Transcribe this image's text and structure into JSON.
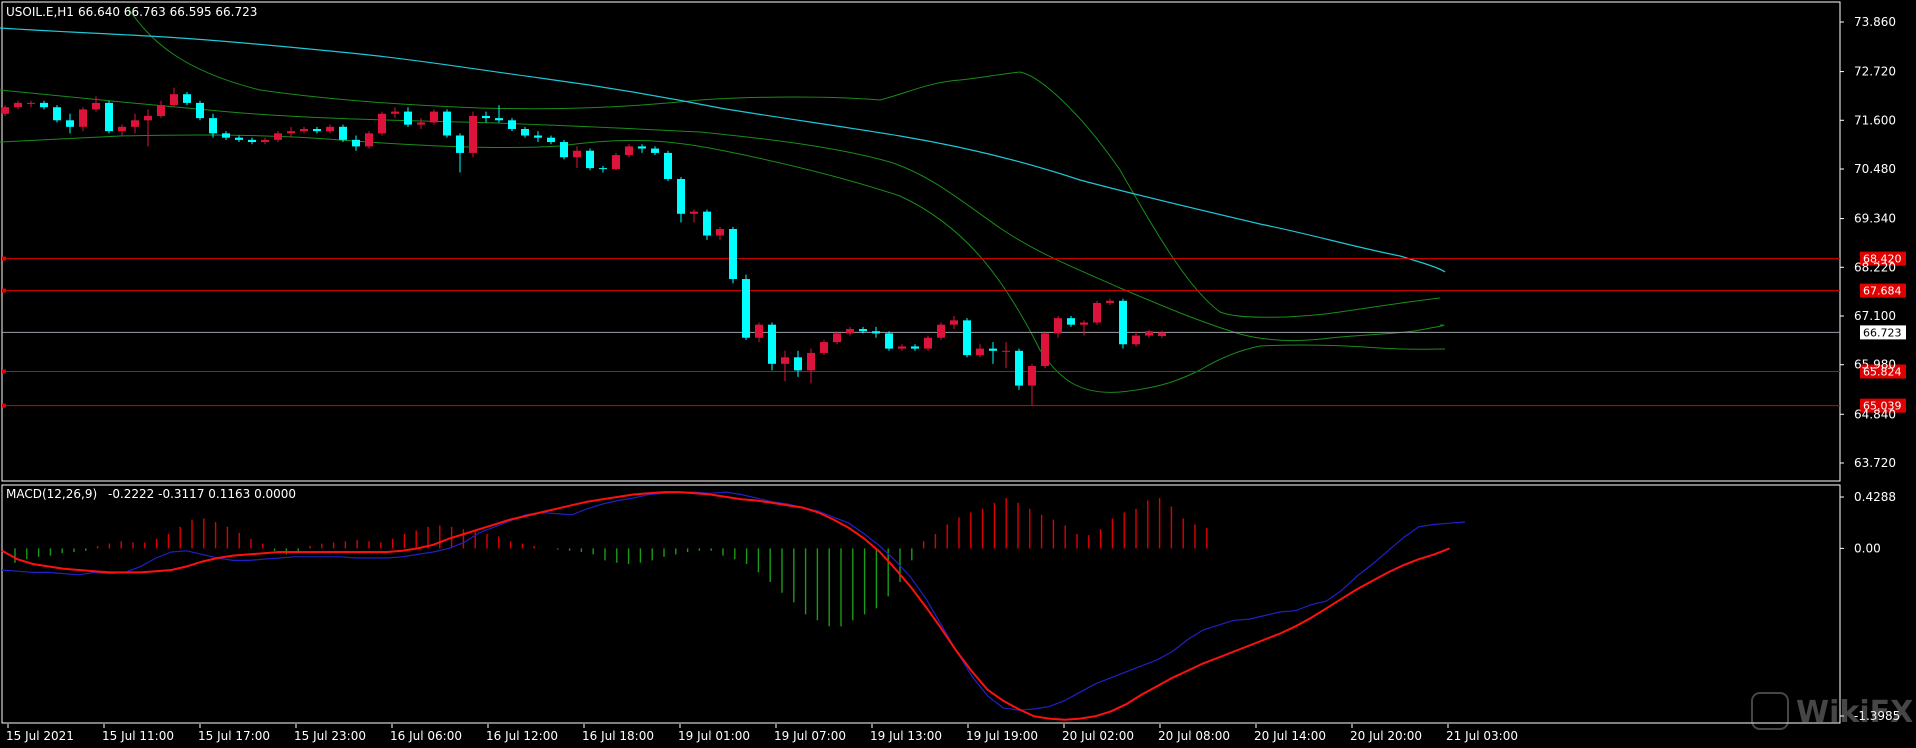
{
  "header": {
    "symbol": "USOIL.E,H1",
    "ohlc": "66.640 66.763 66.595 66.723"
  },
  "macd_header": {
    "label": "MACD(12,26,9)",
    "values": "-0.2222 -0.3117 0.1163 0.0000"
  },
  "watermark": "WikiFX",
  "colors": {
    "background": "#000000",
    "bull_candle": "#dc143c",
    "bear_candle": "#00ffff",
    "ma_line": "#1ec8d8",
    "bollinger": "#1a8c1a",
    "level_line": "#e00000",
    "macd_hist_pos": "#e00000",
    "macd_hist_neg": "#1a9c1a",
    "macd_line": "#2020c8",
    "signal_line": "#ff1010",
    "axis_text": "#ffffff"
  },
  "chart_data": [
    {
      "type": "candlestick",
      "title": "USOIL.E,H1",
      "ylim": [
        63.3,
        74.0
      ],
      "price_ticks": [
        "73.860",
        "72.720",
        "71.600",
        "70.480",
        "69.340",
        "68.220",
        "67.100",
        "65.980",
        "64.840",
        "63.720"
      ],
      "time_labels": [
        "15 Jul 2021",
        "15 Jul 11:00",
        "15 Jul 17:00",
        "15 Jul 23:00",
        "16 Jul 06:00",
        "16 Jul 12:00",
        "16 Jul 18:00",
        "19 Jul 01:00",
        "19 Jul 07:00",
        "19 Jul 13:00",
        "19 Jul 19:00",
        "20 Jul 02:00",
        "20 Jul 08:00",
        "20 Jul 14:00",
        "20 Jul 20:00",
        "21 Jul 03:00"
      ],
      "current_price": "66.723",
      "levels": [
        {
          "label": "68.420",
          "value": 68.42
        },
        {
          "label": "67.684",
          "value": 67.684
        },
        {
          "label": "65.824",
          "value": 65.824
        },
        {
          "label": "65.039",
          "value": 65.039
        }
      ],
      "candles": [
        [
          71.75,
          71.95,
          71.7,
          71.9
        ],
        [
          71.9,
          72.05,
          71.85,
          72.0
        ],
        [
          72.0,
          72.05,
          71.9,
          72.0
        ],
        [
          72.0,
          72.05,
          71.85,
          71.9
        ],
        [
          71.9,
          71.95,
          71.55,
          71.6
        ],
        [
          71.6,
          71.75,
          71.3,
          71.45
        ],
        [
          71.45,
          71.9,
          71.35,
          71.85
        ],
        [
          71.85,
          72.15,
          71.8,
          72.0
        ],
        [
          72.0,
          72.05,
          71.3,
          71.35
        ],
        [
          71.35,
          71.5,
          71.25,
          71.45
        ],
        [
          71.45,
          71.75,
          71.3,
          71.6
        ],
        [
          71.6,
          71.85,
          71.0,
          71.7
        ],
        [
          71.7,
          72.05,
          71.65,
          71.95
        ],
        [
          71.95,
          72.35,
          71.9,
          72.2
        ],
        [
          72.2,
          72.25,
          71.95,
          72.0
        ],
        [
          72.0,
          72.05,
          71.6,
          71.65
        ],
        [
          71.65,
          71.75,
          71.2,
          71.3
        ],
        [
          71.3,
          71.35,
          71.15,
          71.2
        ],
        [
          71.2,
          71.25,
          71.1,
          71.15
        ],
        [
          71.15,
          71.2,
          71.05,
          71.1
        ],
        [
          71.1,
          71.2,
          71.05,
          71.15
        ],
        [
          71.15,
          71.35,
          71.1,
          71.3
        ],
        [
          71.3,
          71.45,
          71.2,
          71.35
        ],
        [
          71.35,
          71.45,
          71.3,
          71.4
        ],
        [
          71.4,
          71.45,
          71.3,
          71.35
        ],
        [
          71.35,
          71.5,
          71.3,
          71.45
        ],
        [
          71.45,
          71.5,
          71.1,
          71.15
        ],
        [
          71.15,
          71.25,
          70.9,
          71.0
        ],
        [
          71.0,
          71.35,
          70.95,
          71.3
        ],
        [
          71.3,
          71.8,
          71.25,
          71.75
        ],
        [
          71.75,
          71.9,
          71.65,
          71.8
        ],
        [
          71.8,
          71.9,
          71.45,
          71.5
        ],
        [
          71.5,
          71.65,
          71.4,
          71.55
        ],
        [
          71.55,
          71.85,
          71.5,
          71.8
        ],
        [
          71.8,
          71.85,
          71.2,
          71.25
        ],
        [
          71.25,
          71.3,
          70.4,
          70.85
        ],
        [
          70.85,
          71.8,
          70.75,
          71.7
        ],
        [
          71.7,
          71.8,
          71.55,
          71.65
        ],
        [
          71.65,
          71.95,
          71.55,
          71.6
        ],
        [
          71.6,
          71.65,
          71.35,
          71.4
        ],
        [
          71.4,
          71.45,
          71.2,
          71.25
        ],
        [
          71.25,
          71.35,
          71.1,
          71.2
        ],
        [
          71.2,
          71.25,
          71.05,
          71.1
        ],
        [
          71.1,
          71.15,
          70.7,
          70.75
        ],
        [
          70.75,
          71.0,
          70.5,
          70.9
        ],
        [
          70.9,
          70.95,
          70.45,
          70.5
        ],
        [
          70.5,
          70.55,
          70.4,
          70.48
        ],
        [
          70.48,
          70.85,
          70.45,
          70.8
        ],
        [
          70.8,
          71.05,
          70.75,
          71.0
        ],
        [
          71.0,
          71.05,
          70.85,
          70.95
        ],
        [
          70.95,
          71.0,
          70.8,
          70.85
        ],
        [
          70.85,
          70.9,
          70.2,
          70.25
        ],
        [
          70.25,
          70.3,
          69.25,
          69.45
        ],
        [
          69.45,
          69.55,
          69.25,
          69.5
        ],
        [
          69.5,
          69.55,
          68.85,
          68.95
        ],
        [
          68.95,
          69.15,
          68.85,
          69.1
        ],
        [
          69.1,
          69.15,
          67.85,
          67.95
        ],
        [
          67.95,
          68.05,
          66.55,
          66.6
        ],
        [
          66.6,
          66.95,
          66.5,
          66.9
        ],
        [
          66.9,
          66.95,
          65.85,
          66.0
        ],
        [
          66.0,
          66.3,
          65.6,
          66.15
        ],
        [
          66.15,
          66.3,
          65.7,
          65.85
        ],
        [
          65.85,
          66.35,
          65.55,
          66.25
        ],
        [
          66.25,
          66.55,
          66.2,
          66.5
        ],
        [
          66.5,
          66.75,
          66.45,
          66.7
        ],
        [
          66.7,
          66.85,
          66.65,
          66.8
        ],
        [
          66.8,
          66.85,
          66.7,
          66.75
        ],
        [
          66.75,
          66.85,
          66.6,
          66.7
        ],
        [
          66.7,
          66.75,
          66.3,
          66.35
        ],
        [
          66.35,
          66.45,
          66.3,
          66.4
        ],
        [
          66.4,
          66.45,
          66.3,
          66.35
        ],
        [
          66.35,
          66.65,
          66.3,
          66.6
        ],
        [
          66.6,
          66.95,
          66.55,
          66.9
        ],
        [
          66.9,
          67.1,
          66.8,
          67.0
        ],
        [
          67.0,
          67.05,
          66.15,
          66.2
        ],
        [
          66.2,
          66.45,
          66.15,
          66.35
        ],
        [
          66.35,
          66.5,
          66.0,
          66.3
        ],
        [
          66.3,
          66.5,
          65.9,
          66.3
        ],
        [
          66.3,
          66.35,
          65.4,
          65.5
        ],
        [
          65.5,
          66.0,
          65.05,
          65.95
        ],
        [
          65.95,
          66.75,
          65.9,
          66.7
        ],
        [
          66.7,
          67.1,
          66.6,
          67.05
        ],
        [
          67.05,
          67.1,
          66.85,
          66.9
        ],
        [
          66.9,
          67.0,
          66.65,
          66.95
        ],
        [
          66.95,
          67.45,
          66.9,
          67.4
        ],
        [
          67.4,
          67.5,
          67.35,
          67.45
        ],
        [
          67.45,
          67.5,
          66.35,
          66.45
        ],
        [
          66.45,
          66.75,
          66.4,
          66.65
        ],
        [
          66.65,
          66.78,
          66.6,
          66.75
        ],
        [
          66.64,
          66.763,
          66.595,
          66.723
        ]
      ]
    },
    {
      "type": "histogram+line",
      "title": "MACD(12,26,9)",
      "ylim": [
        -1.3985,
        0.4288
      ],
      "tick_labels": [
        "0.4288",
        "0.00",
        "-1.3985"
      ],
      "histogram": [
        -0.12,
        -0.09,
        -0.07,
        -0.06,
        -0.04,
        -0.03,
        -0.02,
        0.02,
        0.04,
        0.06,
        0.05,
        0.05,
        0.08,
        0.12,
        0.18,
        0.24,
        0.25,
        0.22,
        0.18,
        0.13,
        0.08,
        0.04,
        -0.02,
        -0.05,
        -0.04,
        0.02,
        0.04,
        0.05,
        0.06,
        0.07,
        0.06,
        0.05,
        0.08,
        0.12,
        0.15,
        0.18,
        0.19,
        0.18,
        0.16,
        0.14,
        0.12,
        0.1,
        0.06,
        0.04,
        0.02,
        0.0,
        -0.01,
        -0.02,
        -0.03,
        -0.05,
        -0.1,
        -0.12,
        -0.13,
        -0.12,
        -0.1,
        -0.07,
        -0.05,
        -0.03,
        -0.02,
        -0.02,
        -0.06,
        -0.09,
        -0.13,
        -0.2,
        -0.28,
        -0.37,
        -0.45,
        -0.55,
        -0.6,
        -0.65,
        -0.65,
        -0.6,
        -0.55,
        -0.5,
        -0.4,
        -0.28,
        -0.1,
        0.06,
        0.12,
        0.2,
        0.26,
        0.3,
        0.33,
        0.38,
        0.42,
        0.38,
        0.33,
        0.28,
        0.24,
        0.19,
        0.12,
        0.11,
        0.16,
        0.25,
        0.3,
        0.33,
        0.4,
        0.42,
        0.35,
        0.25,
        0.2,
        0.17
      ],
      "macd": [
        -0.18,
        -0.19,
        -0.2,
        -0.2,
        -0.21,
        -0.22,
        -0.2,
        -0.21,
        -0.2,
        -0.15,
        -0.08,
        -0.03,
        -0.02,
        -0.05,
        -0.08,
        -0.1,
        -0.1,
        -0.09,
        -0.08,
        -0.07,
        -0.07,
        -0.07,
        -0.07,
        -0.08,
        -0.08,
        -0.08,
        -0.07,
        -0.05,
        -0.03,
        0.0,
        0.05,
        0.13,
        0.18,
        0.23,
        0.28,
        0.3,
        0.29,
        0.28,
        0.33,
        0.37,
        0.4,
        0.42,
        0.45,
        0.46,
        0.47,
        0.47,
        0.46,
        0.47,
        0.45,
        0.42,
        0.39,
        0.37,
        0.34,
        0.31,
        0.26,
        0.21,
        0.12,
        0.02,
        -0.1,
        -0.24,
        -0.42,
        -0.64,
        -0.86,
        -1.07,
        -1.23,
        -1.33,
        -1.35,
        -1.34,
        -1.32,
        -1.27,
        -1.2,
        -1.13,
        -1.08,
        -1.03,
        -0.98,
        -0.93,
        -0.86,
        -0.76,
        -0.68,
        -0.64,
        -0.6,
        -0.59,
        -0.56,
        -0.53,
        -0.52,
        -0.47,
        -0.44,
        -0.35,
        -0.23,
        -0.13,
        -0.02,
        0.09,
        0.18,
        0.2,
        0.21,
        0.22
      ],
      "signal": [
        -0.02,
        -0.09,
        -0.13,
        -0.15,
        -0.17,
        -0.18,
        -0.19,
        -0.2,
        -0.2,
        -0.2,
        -0.19,
        -0.18,
        -0.15,
        -0.11,
        -0.08,
        -0.06,
        -0.05,
        -0.04,
        -0.03,
        -0.03,
        -0.03,
        -0.03,
        -0.03,
        -0.03,
        -0.03,
        -0.03,
        -0.02,
        0.0,
        0.03,
        0.08,
        0.12,
        0.16,
        0.2,
        0.24,
        0.27,
        0.3,
        0.33,
        0.36,
        0.39,
        0.41,
        0.43,
        0.45,
        0.46,
        0.47,
        0.47,
        0.46,
        0.45,
        0.43,
        0.41,
        0.4,
        0.38,
        0.36,
        0.34,
        0.3,
        0.24,
        0.17,
        0.08,
        -0.03,
        -0.17,
        -0.32,
        -0.49,
        -0.67,
        -0.86,
        -1.03,
        -1.18,
        -1.27,
        -1.34,
        -1.4,
        -1.42,
        -1.43,
        -1.42,
        -1.4,
        -1.36,
        -1.3,
        -1.22,
        -1.15,
        -1.08,
        -1.02,
        -0.96,
        -0.91,
        -0.86,
        -0.81,
        -0.76,
        -0.71,
        -0.65,
        -0.58,
        -0.5,
        -0.42,
        -0.34,
        -0.27,
        -0.2,
        -0.14,
        -0.09,
        -0.05,
        0.0
      ]
    }
  ]
}
